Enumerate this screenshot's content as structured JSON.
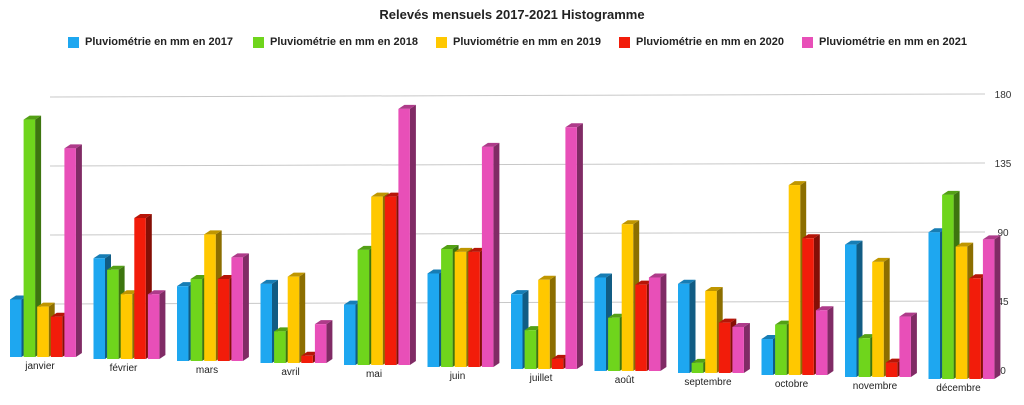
{
  "chart_data": {
    "type": "bar",
    "title": "Relevés mensuels 2017-2021 Histogramme",
    "categories": [
      "janvier",
      "février",
      "mars",
      "avril",
      "mai",
      "juin",
      "juillet",
      "août",
      "septembre",
      "octobre",
      "novembre",
      "décembre"
    ],
    "series": [
      {
        "name": "Pluviométrie en mm en 2017",
        "color": "#1ea7f0",
        "values": [
          40,
          70,
          52,
          55,
          42,
          65,
          52,
          65,
          62,
          25,
          92,
          102
        ]
      },
      {
        "name": "Pluviométrie en mm en 2018",
        "color": "#6fd51c",
        "values": [
          165,
          62,
          57,
          22,
          80,
          82,
          27,
          37,
          7,
          35,
          27,
          128
        ]
      },
      {
        "name": "Pluviométrie en mm en 2019",
        "color": "#ffc800",
        "values": [
          35,
          45,
          88,
          60,
          117,
          80,
          62,
          102,
          57,
          132,
          80,
          92
        ]
      },
      {
        "name": "Pluviométrie en mm en 2020",
        "color": "#f21c0a",
        "values": [
          28,
          98,
          57,
          5,
          117,
          80,
          7,
          60,
          35,
          95,
          10,
          70
        ]
      },
      {
        "name": "Pluviométrie en mm en 2021",
        "color": "#e84fb8",
        "values": [
          145,
          45,
          72,
          27,
          178,
          153,
          168,
          65,
          32,
          45,
          42,
          97
        ]
      }
    ],
    "ylim": [
      0,
      180
    ],
    "yticks": [
      0,
      45,
      90,
      135,
      180
    ],
    "grid": true,
    "legend_position": "top"
  }
}
